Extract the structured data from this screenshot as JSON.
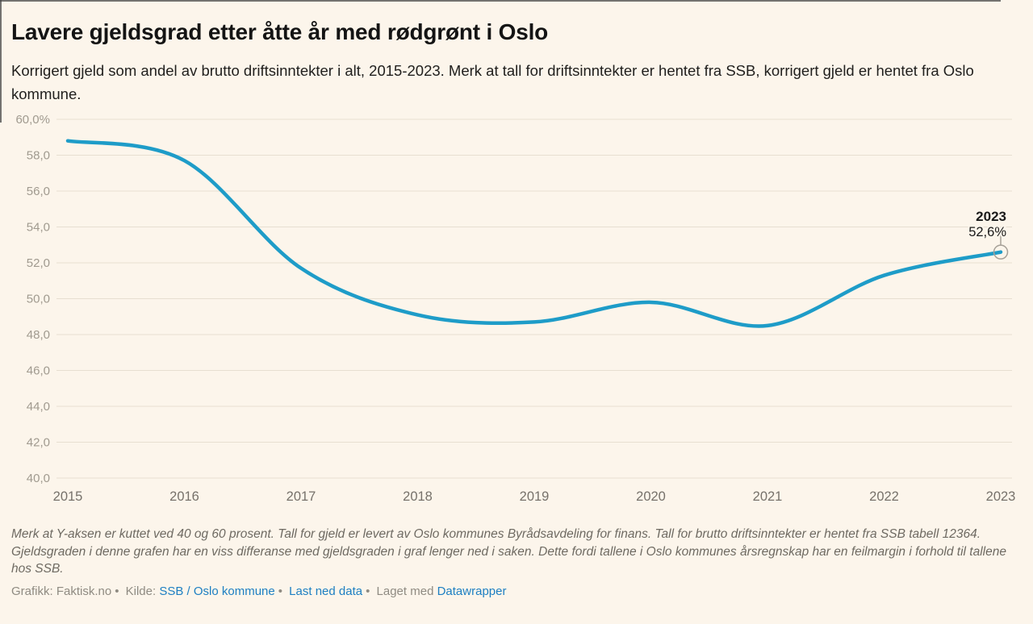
{
  "header": {
    "title": "Lavere gjeldsgrad etter åtte år med rødgrønt i Oslo",
    "subtitle": "Korrigert gjeld som andel av brutto driftsinntekter i alt, 2015-2023. Merk at tall for driftsinntekter er hentet fra SSB, korrigert gjeld er hentet fra Oslo kommune."
  },
  "chart_data": {
    "type": "line",
    "title": "Lavere gjeldsgrad etter åtte år med rødgrønt i Oslo",
    "x": [
      "2015",
      "2016",
      "2017",
      "2018",
      "2019",
      "2020",
      "2021",
      "2022",
      "2023"
    ],
    "values": [
      58.8,
      57.7,
      51.7,
      49.1,
      48.7,
      49.8,
      48.5,
      51.3,
      52.6
    ],
    "ylim": [
      40,
      60
    ],
    "yticks": [
      {
        "value": 60,
        "label": "60,0%"
      },
      {
        "value": 58,
        "label": "58,0"
      },
      {
        "value": 56,
        "label": "56,0"
      },
      {
        "value": 54,
        "label": "54,0"
      },
      {
        "value": 52,
        "label": "52,0"
      },
      {
        "value": 50,
        "label": "50,0"
      },
      {
        "value": 48,
        "label": "48,0"
      },
      {
        "value": 46,
        "label": "46,0"
      },
      {
        "value": 44,
        "label": "44,0"
      },
      {
        "value": 42,
        "label": "42,0"
      },
      {
        "value": 40,
        "label": "40,0"
      }
    ],
    "grid": true,
    "legend": "none",
    "line_color": "#1e9cc8",
    "end_label": {
      "year": "2023",
      "value_label": "52,6%"
    }
  },
  "footer": {
    "note": "Merk at Y-aksen er kuttet ved 40 og 60 prosent. Tall for gjeld er levert av Oslo kommunes Byrådsavdeling for finans. Tall for brutto driftsinntekter er hentet fra SSB tabell 12364. Gjeldsgraden i denne grafen har en viss differanse med gjeldsgraden i graf lenger ned i saken. Dette fordi tallene i Oslo kommunes årsregnskap har en feilmargin i forhold til tallene hos SSB.",
    "credit": {
      "graphics": "Grafikk: Faktisk.no",
      "bullet": "•",
      "source_label": "Kilde:",
      "source_link": "SSB / Oslo kommune",
      "download_link": "Last ned data",
      "made_with_label": "Laget med",
      "made_with_link": "Datawrapper"
    }
  },
  "colors": {
    "background": "#fcf5eb",
    "line": "#1e9cc8",
    "link": "#1d7fc2",
    "gridline": "#e7dfd1"
  }
}
